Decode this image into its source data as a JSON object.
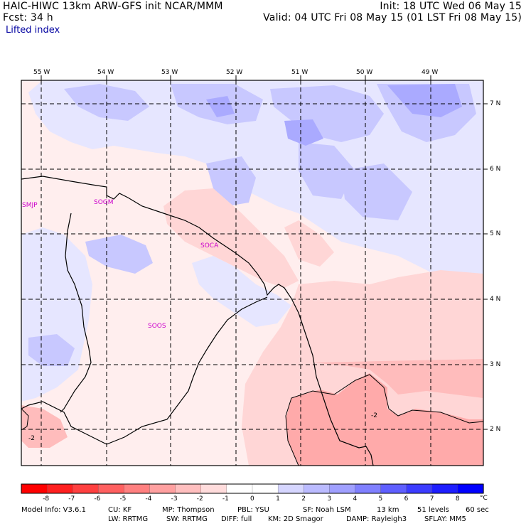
{
  "header": {
    "line1_left": "HAIC-HIWC 13km ARW-GFS init   NCAR/MMM",
    "line1_right": "Init: 18 UTC Wed 06 May 15",
    "line2_left": "Fcst:    34 h",
    "line2_right": "Valid: 04 UTC Fri 08 May 15 (01 LST Fri 08 May 15)",
    "field_name": "Lifted index"
  },
  "map": {
    "lon_labels": [
      "55 W",
      "54 W",
      "53 W",
      "52 W",
      "51 W",
      "50 W",
      "49 W"
    ],
    "lat_labels": [
      "7 N",
      "6 N",
      "5 N",
      "4 N",
      "3 N",
      "2 N"
    ],
    "stations": [
      "SMJP",
      "SOGM",
      "SOCA",
      "SOOS"
    ],
    "contour_labels": [
      "-2",
      "-2"
    ],
    "colors": {
      "neg1": "#ffe6e6",
      "neg2": "#ffcccc",
      "neg3": "#ffa8a8",
      "pos1": "#e6e6ff",
      "pos2": "#c8c8ff",
      "pos3": "#aaaaff",
      "station": "#cc00cc"
    }
  },
  "colorbar": {
    "ticks": [
      "-8",
      "-7",
      "-6",
      "-5",
      "-4",
      "-3",
      "-2",
      "-1",
      "0",
      "1",
      "2",
      "3",
      "4",
      "5",
      "6",
      "7",
      "8"
    ],
    "unit": "°C",
    "colors": [
      "#ff0000",
      "#ff2020",
      "#ff4040",
      "#ff6060",
      "#ff8080",
      "#ffa0a0",
      "#ffbfbf",
      "#ffdcdc",
      "#ffffff",
      "#ffffff",
      "#d6d6ff",
      "#bbbbff",
      "#a0a0ff",
      "#8080ff",
      "#5f5fff",
      "#3c3cff",
      "#1e1eff",
      "#0000ff"
    ]
  },
  "footer": {
    "model_info": "Model Info: V3.6.1",
    "cu": "CU: KF",
    "mp": "MP: Thompson",
    "pbl": "PBL: YSU",
    "sf": "SF: Noah LSM",
    "res": "13 km",
    "levels": "51 levels",
    "dt": "60 sec",
    "lw": "LW: RRTMG",
    "sw": "SW: RRTMG",
    "diff": "DIFF: full",
    "km": "KM: 2D Smagor",
    "damp": "DAMP: Rayleigh3",
    "sflay": "SFLAY: MM5"
  }
}
